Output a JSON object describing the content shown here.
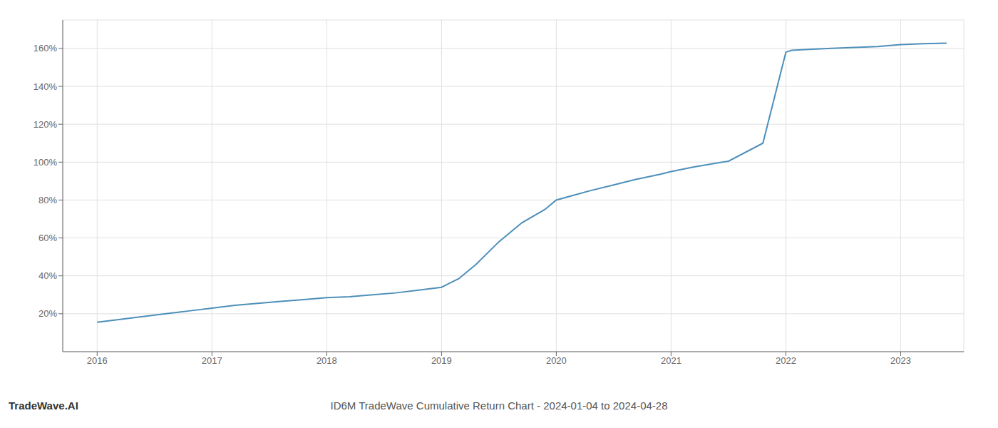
{
  "chart_data": {
    "type": "line",
    "title": "ID6M TradeWave Cumulative Return Chart - 2024-01-04 to 2024-04-28",
    "annotations": [
      "TradeWave.AI"
    ],
    "x": [
      2016.0,
      2016.2,
      2016.4,
      2016.6,
      2016.8,
      2017.0,
      2017.2,
      2017.4,
      2017.6,
      2017.8,
      2018.0,
      2018.2,
      2018.4,
      2018.6,
      2018.8,
      2019.0,
      2019.05,
      2019.15,
      2019.3,
      2019.5,
      2019.7,
      2019.9,
      2020.0,
      2020.15,
      2020.3,
      2020.5,
      2020.7,
      2020.9,
      2021.0,
      2021.2,
      2021.5,
      2021.8,
      2022.0,
      2022.05,
      2022.2,
      2022.4,
      2022.6,
      2022.8,
      2023.0,
      2023.2,
      2023.4
    ],
    "values": [
      15.5,
      17.0,
      18.5,
      20.0,
      21.5,
      23.0,
      24.5,
      25.5,
      26.5,
      27.5,
      28.5,
      29.0,
      30.0,
      31.0,
      32.5,
      34.0,
      35.5,
      38.5,
      46.0,
      58.0,
      68.0,
      75.0,
      80.0,
      82.5,
      85.0,
      88.0,
      91.0,
      93.5,
      95.0,
      97.5,
      100.5,
      110.0,
      158.0,
      159.0,
      159.5,
      160.0,
      160.5,
      161.0,
      162.0,
      162.5,
      162.8
    ],
    "color": "#4d8fba",
    "xlim": [
      2015.7,
      2023.55
    ],
    "ylim": [
      0,
      175
    ],
    "xticks": [
      2016,
      2017,
      2018,
      2019,
      2020,
      2021,
      2022,
      2023
    ],
    "yticks": [
      {
        "value": 20,
        "label": "20%"
      },
      {
        "value": 40,
        "label": "40%"
      },
      {
        "value": 60,
        "label": "60%"
      },
      {
        "value": 80,
        "label": "80%"
      },
      {
        "value": 100,
        "label": "100%"
      },
      {
        "value": 120,
        "label": "120%"
      },
      {
        "value": 140,
        "label": "140%"
      },
      {
        "value": 160,
        "label": "160%"
      }
    ],
    "grid": true
  }
}
